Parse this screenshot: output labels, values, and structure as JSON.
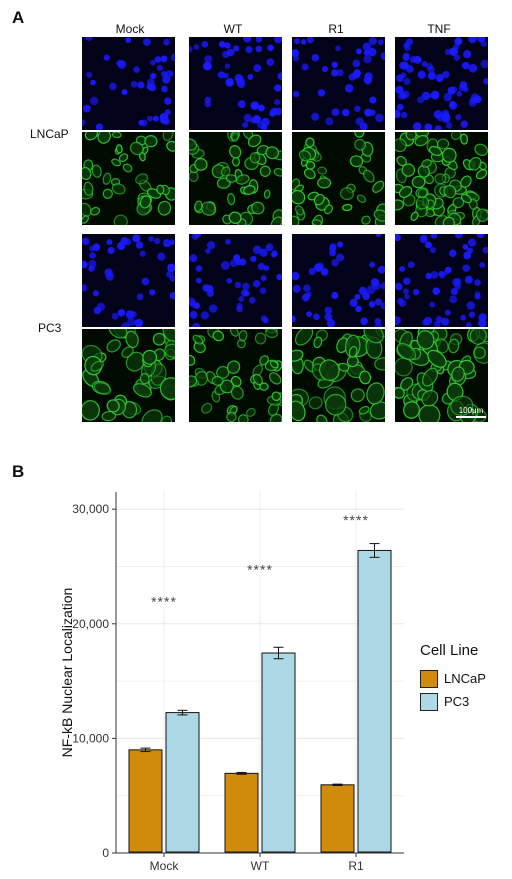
{
  "panel_a": {
    "letter": "A",
    "columns": [
      "Mock",
      "WT",
      "R1",
      "TNF"
    ],
    "rows": [
      "LNCaP",
      "PC3"
    ],
    "scale_bar": "100μm",
    "stain_colors": {
      "dapi": "#1a1aff",
      "nfkb": "#33cc33"
    }
  },
  "panel_b": {
    "letter": "B"
  },
  "chart_data": {
    "type": "bar",
    "categories": [
      "Mock",
      "WT",
      "R1"
    ],
    "ylabel": "NF-kB Nuclear Localization",
    "ylim": [
      0,
      31500
    ],
    "yticks": [
      0,
      10000,
      20000,
      30000
    ],
    "ytick_labels": [
      "0",
      "10,000",
      "20,000",
      "30,000"
    ],
    "legend_title": "Cell Line",
    "legend_position": "right",
    "grid": true,
    "series": [
      {
        "name": "LNCaP",
        "color": "#d08a0c",
        "values": [
          9000,
          6950,
          5950
        ],
        "errors": [
          150,
          80,
          60
        ]
      },
      {
        "name": "PC3",
        "color": "#add8e6",
        "values": [
          12250,
          17450,
          26400
        ],
        "errors": [
          200,
          500,
          600
        ]
      }
    ],
    "annotations": [
      {
        "category": "Mock",
        "text": "****",
        "y": 21500
      },
      {
        "category": "WT",
        "text": "****",
        "y": 24300
      },
      {
        "category": "R1",
        "text": "****",
        "y": 28600
      }
    ]
  }
}
